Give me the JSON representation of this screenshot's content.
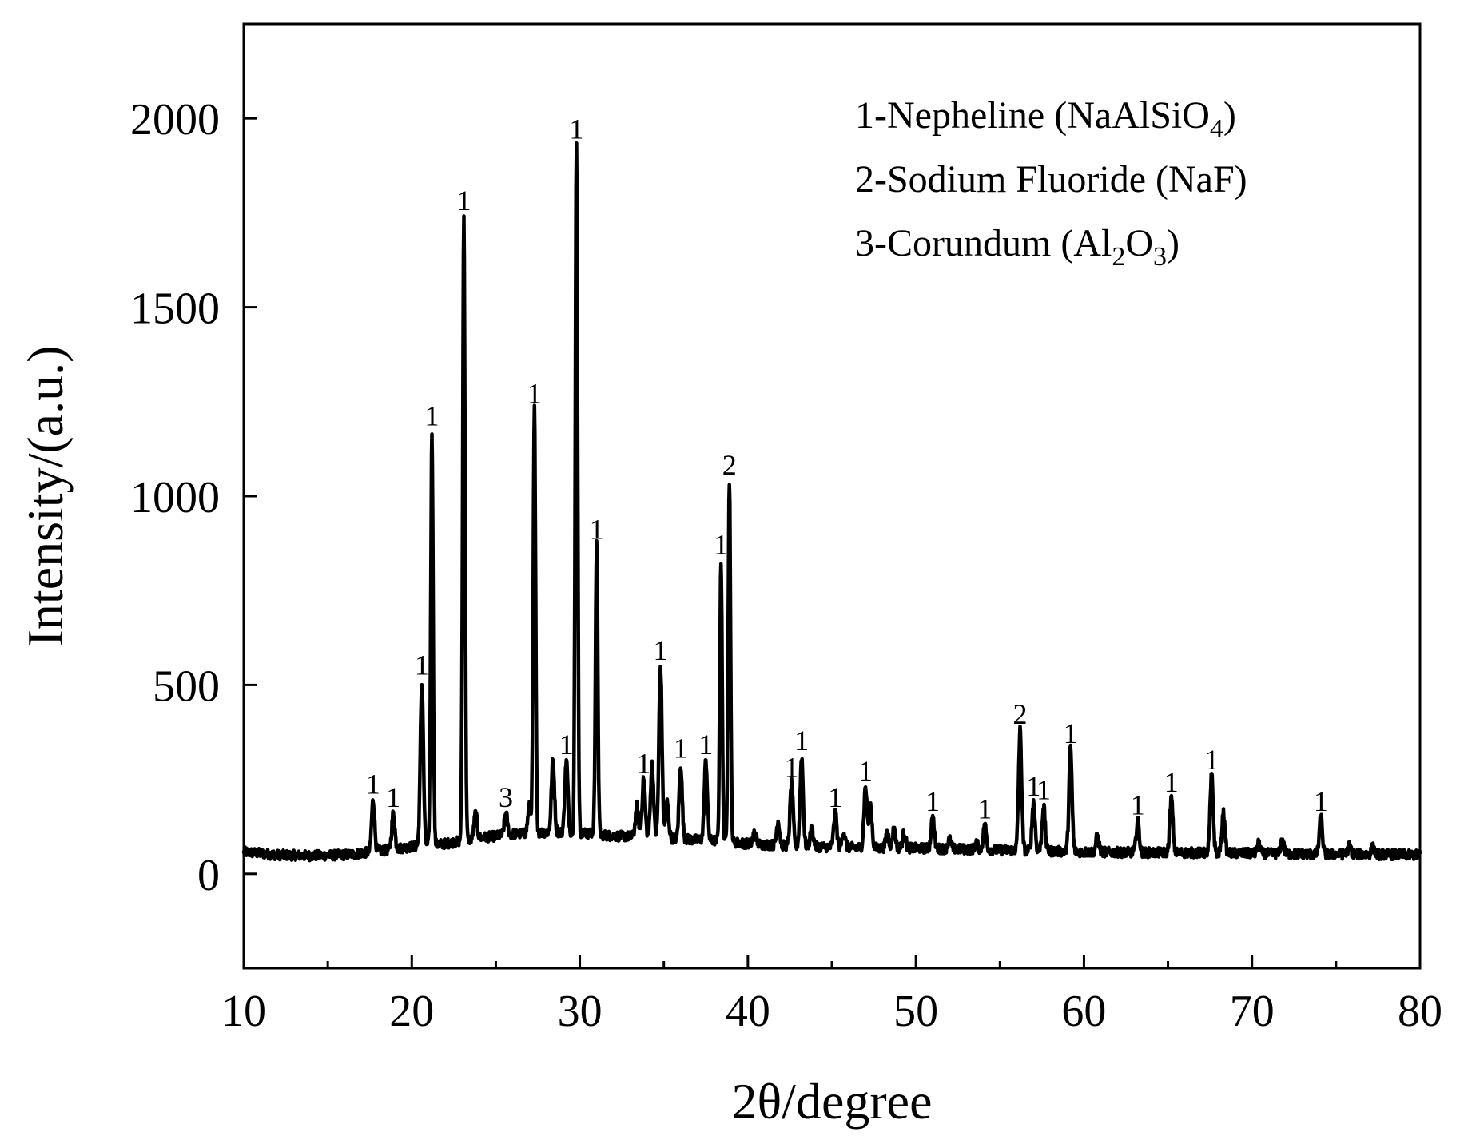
{
  "chart_data": {
    "type": "line",
    "xlabel": "2θ/degree",
    "ylabel": "Intensity/(a.u.)",
    "xlim": [
      10,
      80
    ],
    "ylim": [
      -250,
      2250
    ],
    "x_ticks": [
      10,
      20,
      30,
      40,
      50,
      60,
      70,
      80
    ],
    "x_tick_labels": [
      "10",
      "20",
      "30",
      "40",
      "50",
      "60",
      "70",
      "80"
    ],
    "x_minor_ticks": [
      15,
      25,
      35,
      45,
      55,
      65,
      75
    ],
    "y_ticks": [
      0,
      500,
      1000,
      1500,
      2000
    ],
    "y_tick_labels": [
      "0",
      "500",
      "1000",
      "1500",
      "2000"
    ],
    "grid": false,
    "legend_position": "top-right",
    "legend": [
      {
        "text": "1-Nepheline (NaAlSiO",
        "sub": "4",
        "tail": ")"
      },
      {
        "text": "2-Sodium Fluoride (NaF)",
        "sub": "",
        "tail": ""
      },
      {
        "text": "3-Corundum (Al",
        "sub": "2",
        "mid": "O",
        "sub2": "3",
        "tail": ")"
      }
    ],
    "color": "#000000",
    "baseline": [
      [
        10,
        58
      ],
      [
        12,
        50
      ],
      [
        14,
        48
      ],
      [
        16,
        50
      ],
      [
        18,
        60
      ],
      [
        20,
        72
      ],
      [
        22,
        80
      ],
      [
        24,
        95
      ],
      [
        26,
        105
      ],
      [
        28,
        110
      ],
      [
        30,
        108
      ],
      [
        32,
        100
      ],
      [
        34,
        98
      ],
      [
        36,
        92
      ],
      [
        38,
        88
      ],
      [
        40,
        80
      ],
      [
        42,
        75
      ],
      [
        44,
        72
      ],
      [
        46,
        70
      ],
      [
        48,
        68
      ],
      [
        50,
        68
      ],
      [
        52,
        66
      ],
      [
        54,
        64
      ],
      [
        56,
        62
      ],
      [
        58,
        60
      ],
      [
        60,
        58
      ],
      [
        62,
        57
      ],
      [
        64,
        56
      ],
      [
        66,
        56
      ],
      [
        68,
        55
      ],
      [
        70,
        54
      ],
      [
        72,
        53
      ],
      [
        74,
        52
      ],
      [
        76,
        52
      ],
      [
        78,
        51
      ],
      [
        80,
        50
      ]
    ],
    "peaks": [
      {
        "x": 17.7,
        "y": 195,
        "label": "1"
      },
      {
        "x": 18.9,
        "y": 160,
        "label": "1"
      },
      {
        "x": 20.6,
        "y": 510,
        "label": "1"
      },
      {
        "x": 21.2,
        "y": 1170,
        "label": "1"
      },
      {
        "x": 23.1,
        "y": 1740,
        "label": "1"
      },
      {
        "x": 23.8,
        "y": 160,
        "label": ""
      },
      {
        "x": 25.6,
        "y": 160,
        "label": "3"
      },
      {
        "x": 27.0,
        "y": 180,
        "label": ""
      },
      {
        "x": 27.3,
        "y": 1230,
        "label": "1"
      },
      {
        "x": 28.4,
        "y": 300,
        "label": ""
      },
      {
        "x": 29.2,
        "y": 300,
        "label": "1"
      },
      {
        "x": 29.8,
        "y": 1930,
        "label": "1"
      },
      {
        "x": 31.0,
        "y": 870,
        "label": "1"
      },
      {
        "x": 33.4,
        "y": 180,
        "label": ""
      },
      {
        "x": 33.8,
        "y": 250,
        "label": "1"
      },
      {
        "x": 34.3,
        "y": 290,
        "label": ""
      },
      {
        "x": 34.8,
        "y": 550,
        "label": "1"
      },
      {
        "x": 35.2,
        "y": 190,
        "label": ""
      },
      {
        "x": 36.0,
        "y": 290,
        "label": "1"
      },
      {
        "x": 37.5,
        "y": 300,
        "label": "1"
      },
      {
        "x": 38.4,
        "y": 830,
        "label": "1"
      },
      {
        "x": 38.9,
        "y": 1040,
        "label": "2"
      },
      {
        "x": 40.4,
        "y": 110,
        "label": ""
      },
      {
        "x": 41.8,
        "y": 140,
        "label": ""
      },
      {
        "x": 42.6,
        "y": 240,
        "label": "1"
      },
      {
        "x": 43.2,
        "y": 310,
        "label": "1"
      },
      {
        "x": 43.8,
        "y": 120,
        "label": ""
      },
      {
        "x": 45.2,
        "y": 160,
        "label": "1"
      },
      {
        "x": 45.7,
        "y": 110,
        "label": ""
      },
      {
        "x": 47.0,
        "y": 230,
        "label": "1"
      },
      {
        "x": 47.3,
        "y": 180,
        "label": ""
      },
      {
        "x": 48.3,
        "y": 110,
        "label": ""
      },
      {
        "x": 48.7,
        "y": 120,
        "label": ""
      },
      {
        "x": 49.3,
        "y": 110,
        "label": ""
      },
      {
        "x": 51.0,
        "y": 150,
        "label": "1"
      },
      {
        "x": 52.0,
        "y": 90,
        "label": ""
      },
      {
        "x": 53.6,
        "y": 80,
        "label": ""
      },
      {
        "x": 54.1,
        "y": 130,
        "label": "1"
      },
      {
        "x": 56.2,
        "y": 380,
        "label": "2"
      },
      {
        "x": 57.0,
        "y": 190,
        "label": "1"
      },
      {
        "x": 57.6,
        "y": 180,
        "label": "1"
      },
      {
        "x": 59.2,
        "y": 330,
        "label": "1"
      },
      {
        "x": 60.8,
        "y": 100,
        "label": ""
      },
      {
        "x": 63.2,
        "y": 140,
        "label": "1"
      },
      {
        "x": 65.2,
        "y": 200,
        "label": "1"
      },
      {
        "x": 67.6,
        "y": 260,
        "label": "1"
      },
      {
        "x": 68.3,
        "y": 160,
        "label": ""
      },
      {
        "x": 70.4,
        "y": 80,
        "label": ""
      },
      {
        "x": 71.8,
        "y": 90,
        "label": ""
      },
      {
        "x": 74.1,
        "y": 150,
        "label": "1"
      },
      {
        "x": 75.8,
        "y": 75,
        "label": ""
      },
      {
        "x": 77.2,
        "y": 70,
        "label": ""
      }
    ]
  }
}
